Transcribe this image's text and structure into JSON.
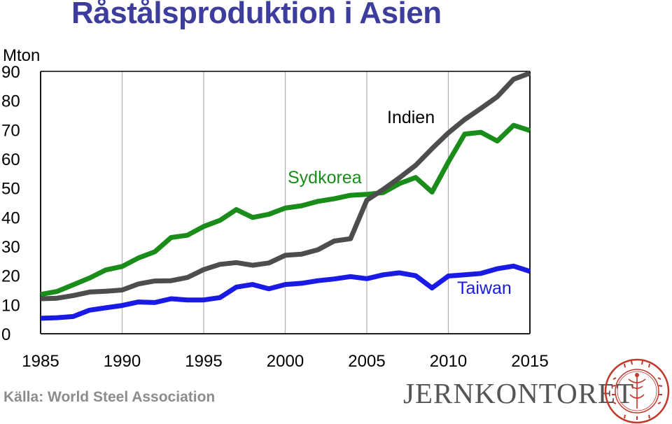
{
  "title": "Råstålsproduktion i Asien",
  "source": "Källa: World Steel Association",
  "logo": {
    "text": "JERNKONTORET",
    "seal_text": "JERN · CONTOIRETS · SIGILL"
  },
  "colors": {
    "title": "#3d3d9e",
    "sydkorea": "#1a8c1a",
    "indien": "#4d4d4d",
    "taiwan": "#1a1ae6",
    "grid": "#b4b4b4",
    "source": "#8c8c8c",
    "logo": "#555555",
    "seal": "#c0392b"
  },
  "chart_data": {
    "type": "line",
    "title": "Råstålsproduktion i Asien",
    "ylabel": "Mton",
    "xlabel": "",
    "xlim": [
      1985,
      2015
    ],
    "ylim": [
      0,
      90
    ],
    "x_ticks": [
      1985,
      1990,
      1995,
      2000,
      2005,
      2010,
      2015
    ],
    "y_ticks": [
      0,
      10,
      20,
      30,
      40,
      50,
      60,
      70,
      80,
      90
    ],
    "grid": {
      "vertical": true,
      "horizontal": false
    },
    "legend": "inline labels",
    "series": [
      {
        "name": "Sydkorea",
        "color": "#1a8c1a",
        "x": [
          1985,
          1986,
          1987,
          1988,
          1989,
          1990,
          1991,
          1992,
          1993,
          1994,
          1995,
          1996,
          1997,
          1998,
          1999,
          2000,
          2001,
          2002,
          2003,
          2004,
          2005,
          2006,
          2007,
          2008,
          2009,
          2010,
          2011,
          2012,
          2013,
          2014,
          2015
        ],
        "values": [
          13.5,
          14.5,
          16.8,
          19.1,
          21.9,
          23.1,
          26.0,
          28.1,
          33.0,
          33.8,
          36.8,
          38.9,
          42.6,
          39.9,
          41.0,
          43.1,
          43.9,
          45.4,
          46.3,
          47.5,
          47.8,
          48.4,
          51.5,
          53.6,
          48.6,
          58.9,
          68.5,
          69.1,
          66.1,
          71.5,
          69.7
        ]
      },
      {
        "name": "Indien",
        "color": "#4d4d4d",
        "x": [
          1985,
          1986,
          1987,
          1988,
          1989,
          1990,
          1991,
          1992,
          1993,
          1994,
          1995,
          1996,
          1997,
          1998,
          1999,
          2000,
          2001,
          2002,
          2003,
          2004,
          2005,
          2006,
          2007,
          2008,
          2009,
          2010,
          2011,
          2012,
          2013,
          2014,
          2015
        ],
        "values": [
          12.0,
          12.2,
          13.1,
          14.3,
          14.6,
          15.0,
          17.1,
          18.1,
          18.2,
          19.3,
          22.0,
          23.8,
          24.4,
          23.5,
          24.3,
          26.9,
          27.3,
          28.8,
          31.8,
          32.6,
          45.8,
          49.5,
          53.5,
          57.8,
          63.5,
          68.9,
          73.5,
          77.3,
          81.3,
          87.3,
          89.4
        ]
      },
      {
        "name": "Taiwan",
        "color": "#1a1ae6",
        "x": [
          1985,
          1986,
          1987,
          1988,
          1989,
          1990,
          1991,
          1992,
          1993,
          1994,
          1995,
          1996,
          1997,
          1998,
          1999,
          2000,
          2001,
          2002,
          2003,
          2004,
          2005,
          2006,
          2007,
          2008,
          2009,
          2010,
          2011,
          2012,
          2013,
          2014,
          2015
        ],
        "values": [
          5.3,
          5.5,
          5.9,
          8.1,
          8.9,
          9.7,
          10.9,
          10.7,
          12.0,
          11.6,
          11.6,
          12.4,
          16.0,
          16.9,
          15.4,
          16.9,
          17.3,
          18.2,
          18.8,
          19.6,
          18.9,
          20.2,
          20.9,
          19.9,
          15.7,
          19.8,
          20.2,
          20.7,
          22.3,
          23.2,
          21.4
        ]
      }
    ],
    "labels": [
      {
        "series": "Sydkorea",
        "text": "Sydkorea"
      },
      {
        "series": "Indien",
        "text": "Indien"
      },
      {
        "series": "Taiwan",
        "text": "Taiwan"
      }
    ]
  }
}
